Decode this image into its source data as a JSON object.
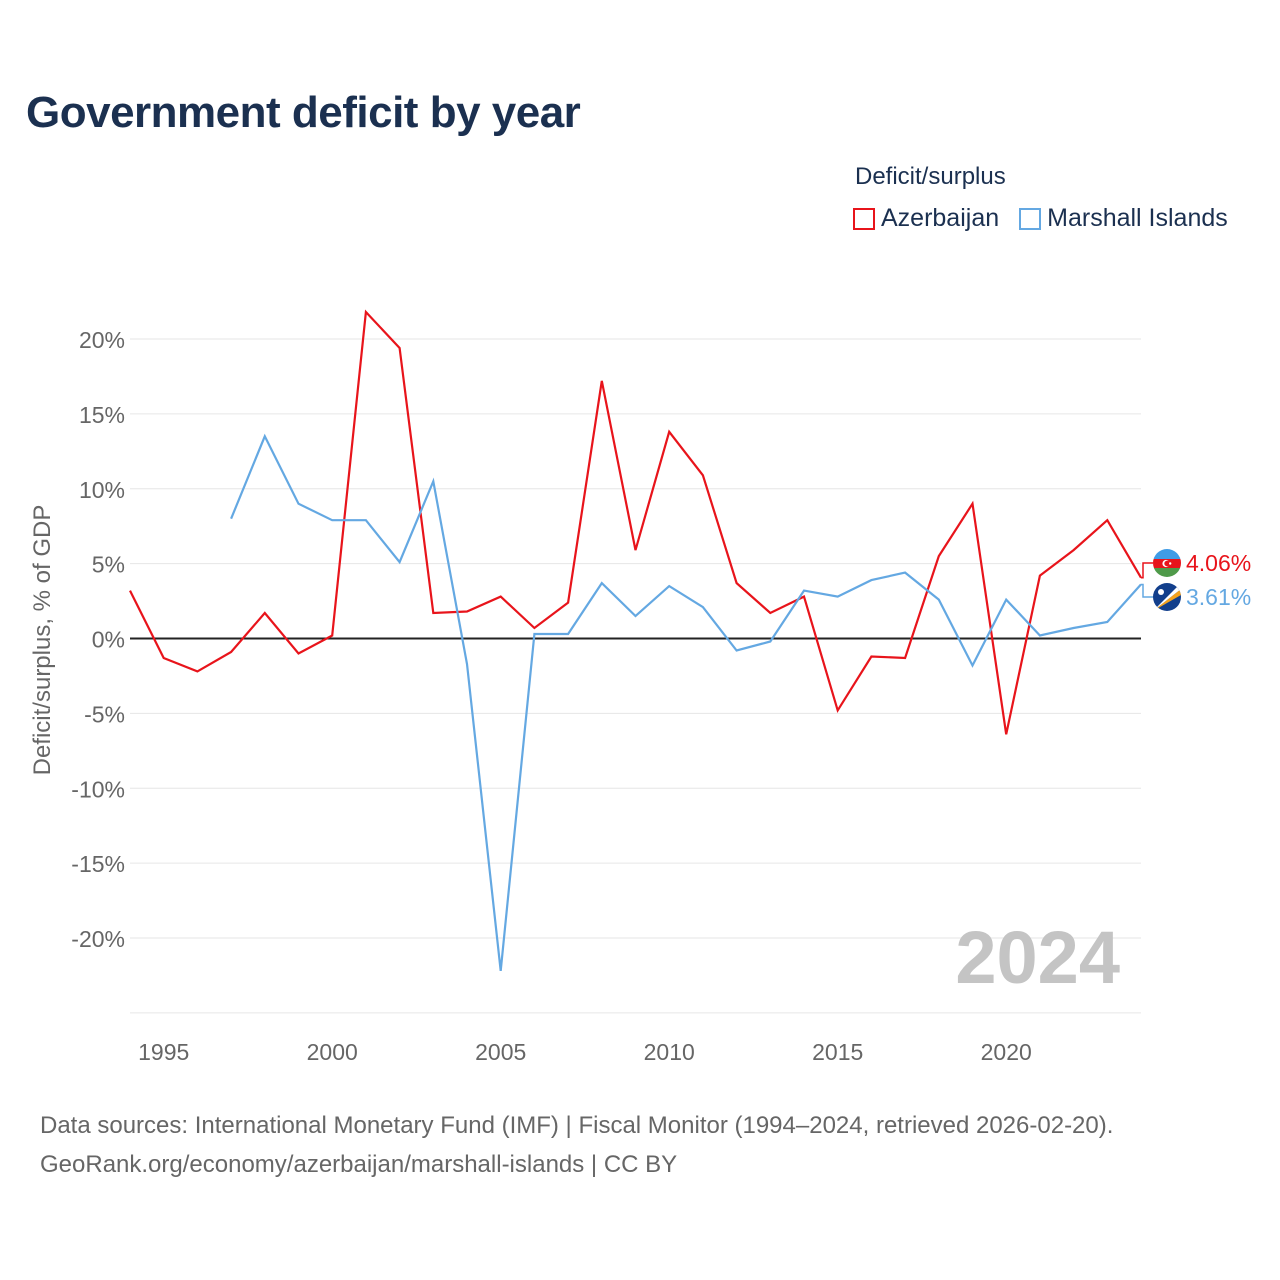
{
  "title": "Government deficit by year",
  "legend": {
    "title": "Deficit/surplus",
    "items": [
      {
        "label": "Azerbaijan",
        "color": "#e8141b"
      },
      {
        "label": "Marshall Islands",
        "color": "#64a8e2"
      }
    ]
  },
  "footer": {
    "line1": "Data sources: International Monetary Fund (IMF) | Fiscal Monitor (1994–2024, retrieved 2026-02-20).",
    "line2": "GeoRank.org/economy/azerbaijan/marshall-islands | CC BY"
  },
  "chart_data": {
    "type": "line",
    "title": "Government deficit by year",
    "ylabel": "Deficit/surplus, % of GDP",
    "xlabel": "",
    "xlim": [
      1994,
      2024
    ],
    "ylim": [
      -25,
      25
    ],
    "yticks": [
      20,
      15,
      10,
      5,
      0,
      -5,
      -10,
      -15,
      -20
    ],
    "ytick_labels": [
      "20%",
      "15%",
      "10%",
      "5%",
      "0%",
      "-5%",
      "-10%",
      "-15%",
      "-20%"
    ],
    "xticks": [
      1995,
      2000,
      2005,
      2010,
      2015,
      2020
    ],
    "xtick_labels": [
      "1995",
      "2000",
      "2005",
      "2010",
      "2015",
      "2020"
    ],
    "year_watermark": "2024",
    "series": [
      {
        "name": "Azerbaijan",
        "color": "#e8141b",
        "x": [
          1994,
          1995,
          1996,
          1997,
          1998,
          1999,
          2000,
          2001,
          2002,
          2003,
          2004,
          2005,
          2006,
          2007,
          2008,
          2009,
          2010,
          2011,
          2012,
          2013,
          2014,
          2015,
          2016,
          2017,
          2018,
          2019,
          2020,
          2021,
          2022,
          2023,
          2024
        ],
        "values": [
          3.2,
          -1.3,
          -2.2,
          -0.9,
          1.7,
          -1.0,
          0.2,
          21.8,
          19.4,
          1.7,
          1.8,
          2.8,
          0.7,
          2.4,
          17.2,
          5.9,
          13.8,
          10.9,
          3.7,
          1.7,
          2.8,
          -4.8,
          -1.2,
          -1.3,
          5.5,
          9.0,
          -6.4,
          4.2,
          5.9,
          7.9,
          4.06
        ],
        "end_label": "4.06%"
      },
      {
        "name": "Marshall Islands",
        "color": "#64a8e2",
        "x": [
          1997,
          1998,
          1999,
          2000,
          2001,
          2002,
          2003,
          2004,
          2005,
          2006,
          2007,
          2008,
          2009,
          2010,
          2011,
          2012,
          2013,
          2014,
          2015,
          2016,
          2017,
          2018,
          2019,
          2020,
          2021,
          2022,
          2023,
          2024
        ],
        "values": [
          8.0,
          13.5,
          9.0,
          7.9,
          7.9,
          5.1,
          10.5,
          -1.7,
          -22.2,
          0.3,
          0.3,
          3.7,
          1.5,
          3.5,
          2.1,
          -0.8,
          -0.2,
          3.2,
          2.8,
          3.9,
          4.4,
          2.6,
          -1.8,
          2.6,
          0.2,
          0.7,
          1.1,
          3.61
        ],
        "end_label": "3.61%"
      }
    ]
  }
}
